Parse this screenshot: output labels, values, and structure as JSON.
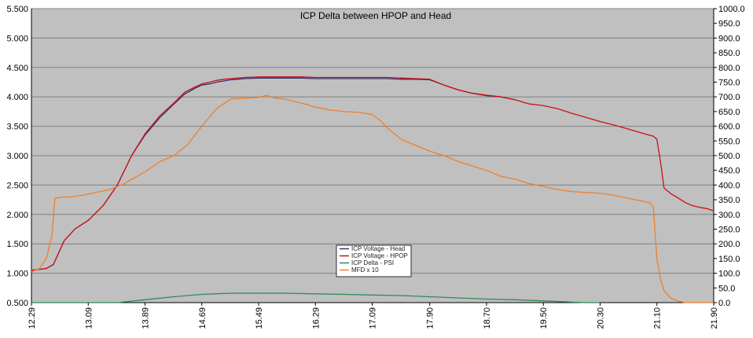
{
  "chart_data": {
    "type": "line",
    "title": "ICP Delta between HPOP and Head",
    "xlabel": "",
    "ylabel": "",
    "x_ticks": [
      "12.29",
      "13.09",
      "13.89",
      "14.69",
      "15.49",
      "16.29",
      "17.09",
      "17.90",
      "18.70",
      "19.50",
      "20.30",
      "21.10",
      "21.90"
    ],
    "xlim": [
      12.29,
      21.9
    ],
    "ylim_left": [
      0.5,
      5.5
    ],
    "ylim_right": [
      0.0,
      1000.0
    ],
    "y_ticks_left": [
      "0.500",
      "1.000",
      "1.500",
      "2.000",
      "2.500",
      "3.000",
      "3.500",
      "4.000",
      "4.500",
      "5.000",
      "5.500"
    ],
    "y_ticks_right": [
      "0.0",
      "50.0",
      "100.0",
      "150.0",
      "200.0",
      "250.0",
      "300.0",
      "350.0",
      "400.0",
      "450.0",
      "500.0",
      "550.0",
      "600.0",
      "650.0",
      "700.0",
      "750.0",
      "800.0",
      "850.0",
      "900.0",
      "950.0",
      "1000.0"
    ],
    "grid": true,
    "plot_background": "#c0c0c0",
    "legend_position": "bottom-center",
    "series": [
      {
        "name": "ICP Voltage - Head",
        "color": "#33336e",
        "axis": "left",
        "x": [
          12.29,
          12.5,
          12.6,
          12.75,
          12.9,
          13.09,
          13.3,
          13.5,
          13.7,
          13.89,
          14.1,
          14.3,
          14.45,
          14.6,
          14.69,
          14.8,
          14.9,
          15.0,
          15.1,
          15.2,
          15.3,
          15.49,
          15.7,
          15.9,
          16.1,
          16.29,
          16.5,
          16.7,
          16.9,
          17.09,
          17.3,
          17.5,
          17.7,
          17.9,
          18.1,
          18.3,
          18.5,
          18.7,
          18.9,
          19.1
        ],
        "y": [
          1.05,
          1.08,
          1.15,
          1.55,
          1.75,
          1.9,
          2.15,
          2.5,
          3.0,
          3.35,
          3.65,
          3.88,
          4.05,
          4.15,
          4.2,
          4.22,
          4.25,
          4.27,
          4.29,
          4.3,
          4.31,
          4.32,
          4.32,
          4.32,
          4.32,
          4.31,
          4.31,
          4.31,
          4.31,
          4.31,
          4.31,
          4.3,
          4.3,
          4.29,
          4.2,
          4.12,
          4.06,
          4.02,
          4.0,
          3.95
        ]
      },
      {
        "name": "ICP Voltage - HPOP",
        "color": "#cc1111",
        "axis": "left",
        "x": [
          12.29,
          12.5,
          12.6,
          12.75,
          12.9,
          13.09,
          13.3,
          13.5,
          13.7,
          13.89,
          14.1,
          14.3,
          14.45,
          14.6,
          14.69,
          14.8,
          14.9,
          15.0,
          15.1,
          15.2,
          15.3,
          15.49,
          15.7,
          15.9,
          16.1,
          16.29,
          16.5,
          16.7,
          16.9,
          17.09,
          17.3,
          17.5,
          17.7,
          17.9,
          18.1,
          18.3,
          18.5,
          18.7,
          18.9,
          19.1,
          19.3,
          19.5,
          19.7,
          19.9,
          20.1,
          20.3,
          20.5,
          20.7,
          20.9,
          21.05,
          21.1,
          21.15,
          21.2,
          21.3,
          21.4,
          21.5,
          21.6,
          21.7,
          21.8,
          21.9
        ],
        "y": [
          1.05,
          1.08,
          1.15,
          1.55,
          1.75,
          1.9,
          2.15,
          2.5,
          3.0,
          3.37,
          3.68,
          3.9,
          4.08,
          4.17,
          4.22,
          4.25,
          4.28,
          4.3,
          4.31,
          4.32,
          4.33,
          4.34,
          4.34,
          4.34,
          4.34,
          4.33,
          4.33,
          4.33,
          4.33,
          4.33,
          4.33,
          4.32,
          4.31,
          4.3,
          4.2,
          4.12,
          4.06,
          4.03,
          4.0,
          3.95,
          3.88,
          3.85,
          3.8,
          3.72,
          3.65,
          3.58,
          3.52,
          3.45,
          3.38,
          3.33,
          3.28,
          2.9,
          2.45,
          2.35,
          2.28,
          2.2,
          2.15,
          2.12,
          2.1,
          2.06
        ]
      },
      {
        "name": "ICP Delta - PSI",
        "color": "#2e8b57",
        "axis": "left",
        "x": [
          12.29,
          13.09,
          13.5,
          13.89,
          14.3,
          14.69,
          15.1,
          15.49,
          15.9,
          16.29,
          16.7,
          17.09,
          17.5,
          17.9,
          18.3,
          18.7,
          19.1,
          19.5,
          19.9,
          20.1,
          20.3
        ],
        "y": [
          0.5,
          0.5,
          0.5,
          0.55,
          0.6,
          0.64,
          0.66,
          0.66,
          0.66,
          0.65,
          0.64,
          0.63,
          0.62,
          0.6,
          0.58,
          0.56,
          0.55,
          0.53,
          0.51,
          0.5,
          0.5
        ]
      },
      {
        "name": "MFD x 10",
        "color": "#f07f2a",
        "axis": "right",
        "x": [
          12.29,
          12.4,
          12.5,
          12.58,
          12.62,
          12.7,
          12.85,
          13.0,
          13.2,
          13.4,
          13.6,
          13.89,
          14.1,
          14.3,
          14.5,
          14.69,
          14.9,
          15.1,
          15.3,
          15.49,
          15.6,
          15.7,
          15.9,
          16.1,
          16.29,
          16.5,
          16.7,
          16.9,
          17.09,
          17.2,
          17.3,
          17.4,
          17.5,
          17.6,
          17.7,
          17.9,
          18.1,
          18.3,
          18.5,
          18.7,
          18.9,
          19.1,
          19.3,
          19.5,
          19.7,
          19.9,
          20.1,
          20.3,
          20.5,
          20.7,
          20.9,
          21.0,
          21.05,
          21.1,
          21.15,
          21.2,
          21.3,
          21.4,
          21.5,
          21.6,
          21.7,
          21.9
        ],
        "y": [
          105,
          115,
          150,
          230,
          355,
          358,
          360,
          365,
          375,
          385,
          405,
          445,
          480,
          500,
          540,
          600,
          660,
          693,
          695,
          698,
          705,
          697,
          690,
          678,
          665,
          655,
          650,
          647,
          640,
          620,
          595,
          575,
          555,
          545,
          535,
          515,
          500,
          480,
          465,
          450,
          430,
          420,
          405,
          395,
          385,
          378,
          375,
          372,
          365,
          355,
          345,
          340,
          325,
          150,
          80,
          40,
          15,
          5,
          0,
          0,
          0,
          0
        ]
      }
    ]
  }
}
